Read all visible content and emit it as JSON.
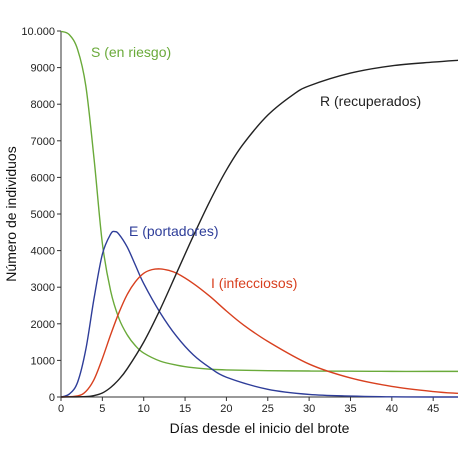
{
  "chart_data": {
    "type": "line",
    "title": "",
    "xlabel": "Días desde el inicio del brote",
    "ylabel": "Número de individuos",
    "xlim": [
      0,
      48
    ],
    "ylim": [
      0,
      10000
    ],
    "x_ticks": [
      0,
      5,
      10,
      15,
      20,
      25,
      30,
      35,
      40,
      45
    ],
    "y_ticks": [
      0,
      1000,
      2000,
      3000,
      4000,
      5000,
      6000,
      7000,
      8000,
      9000,
      10000
    ],
    "x_tick_labels": [
      "0",
      "5",
      "10",
      "15",
      "20",
      "25",
      "30",
      "35",
      "40",
      "45"
    ],
    "y_tick_labels": [
      "0",
      "1000",
      "2000",
      "3000",
      "4000",
      "5000",
      "6000",
      "7000",
      "8000",
      "9000",
      "10.000"
    ],
    "grid": false,
    "legend": "inline labels",
    "series": [
      {
        "name": "S (en riesgo)",
        "color": "#6aaa3a",
        "x": [
          0,
          1,
          2,
          3,
          4,
          5,
          6,
          7,
          8,
          9,
          10,
          12,
          14,
          16,
          18,
          20,
          25,
          30,
          35,
          40,
          45,
          48
        ],
        "y": [
          9990,
          9900,
          9500,
          8500,
          6500,
          4200,
          2900,
          2150,
          1700,
          1400,
          1200,
          980,
          870,
          800,
          760,
          740,
          720,
          710,
          705,
          700,
          700,
          700
        ]
      },
      {
        "name": "E (portadores)",
        "color": "#2e3d99",
        "x": [
          0,
          1,
          2,
          3,
          4,
          5,
          6,
          6.5,
          7,
          8,
          9,
          10,
          12,
          14,
          16,
          18,
          20,
          25,
          30,
          35,
          40,
          45,
          48
        ],
        "y": [
          0,
          80,
          400,
          1300,
          2700,
          3900,
          4450,
          4520,
          4450,
          4100,
          3600,
          3100,
          2300,
          1650,
          1150,
          800,
          540,
          210,
          70,
          25,
          5,
          0,
          0
        ]
      },
      {
        "name": "I (infecciosos)",
        "color": "#d8401f",
        "x": [
          0,
          2,
          3,
          4,
          5,
          6,
          7,
          8,
          9,
          10,
          11,
          12,
          13,
          14,
          16,
          18,
          20,
          22,
          25,
          30,
          35,
          40,
          45,
          48
        ],
        "y": [
          0,
          30,
          150,
          480,
          1050,
          1700,
          2300,
          2800,
          3150,
          3380,
          3480,
          3500,
          3460,
          3380,
          3100,
          2750,
          2350,
          1980,
          1520,
          900,
          520,
          290,
          150,
          100
        ]
      },
      {
        "name": "R (recuperados)",
        "color": "#222222",
        "x": [
          0,
          3,
          4,
          5,
          6,
          7,
          8,
          10,
          12,
          14,
          16,
          18,
          20,
          22,
          25,
          28,
          30,
          35,
          40,
          45,
          48
        ],
        "y": [
          0,
          10,
          40,
          110,
          260,
          480,
          770,
          1500,
          2400,
          3400,
          4400,
          5350,
          6200,
          6900,
          7700,
          8250,
          8500,
          8850,
          9050,
          9150,
          9200
        ]
      }
    ]
  }
}
